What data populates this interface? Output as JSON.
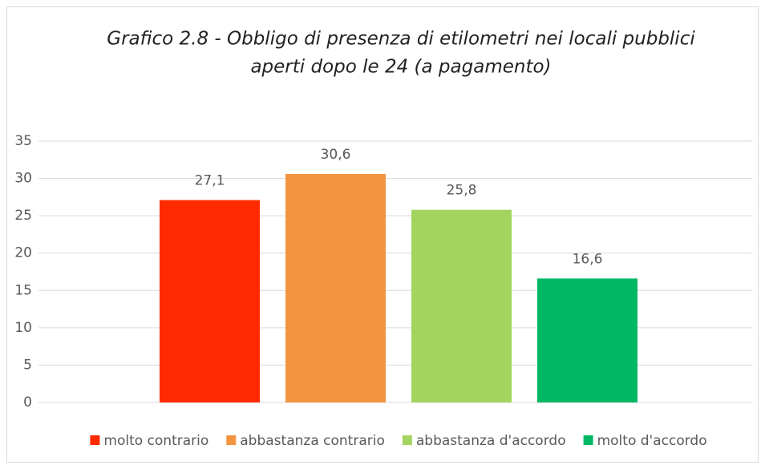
{
  "chart_data": {
    "type": "bar",
    "title": [
      "Grafico 2.8 - Obbligo di presenza di etilometri nei locali pubblici",
      "aperti dopo le 24 (a pagamento)"
    ],
    "series": [
      {
        "name": "molto contrario",
        "color": "#ff2a00",
        "values": [
          27.1
        ],
        "value_labels": [
          "27,1"
        ]
      },
      {
        "name": "abbastanza contrario",
        "color": "#f39441",
        "values": [
          30.6
        ],
        "value_labels": [
          "30,6"
        ]
      },
      {
        "name": "abbastanza d'accordo",
        "color": "#a3d45f",
        "values": [
          25.8
        ],
        "value_labels": [
          "25,8"
        ]
      },
      {
        "name": "molto d'accordo",
        "color": "#00b864",
        "values": [
          16.6
        ],
        "value_labels": [
          "16,6"
        ]
      }
    ],
    "ylim": [
      0,
      35
    ],
    "yticks": [
      0,
      5,
      10,
      15,
      20,
      25,
      30,
      35
    ],
    "grid": true,
    "legend": "bottom"
  }
}
